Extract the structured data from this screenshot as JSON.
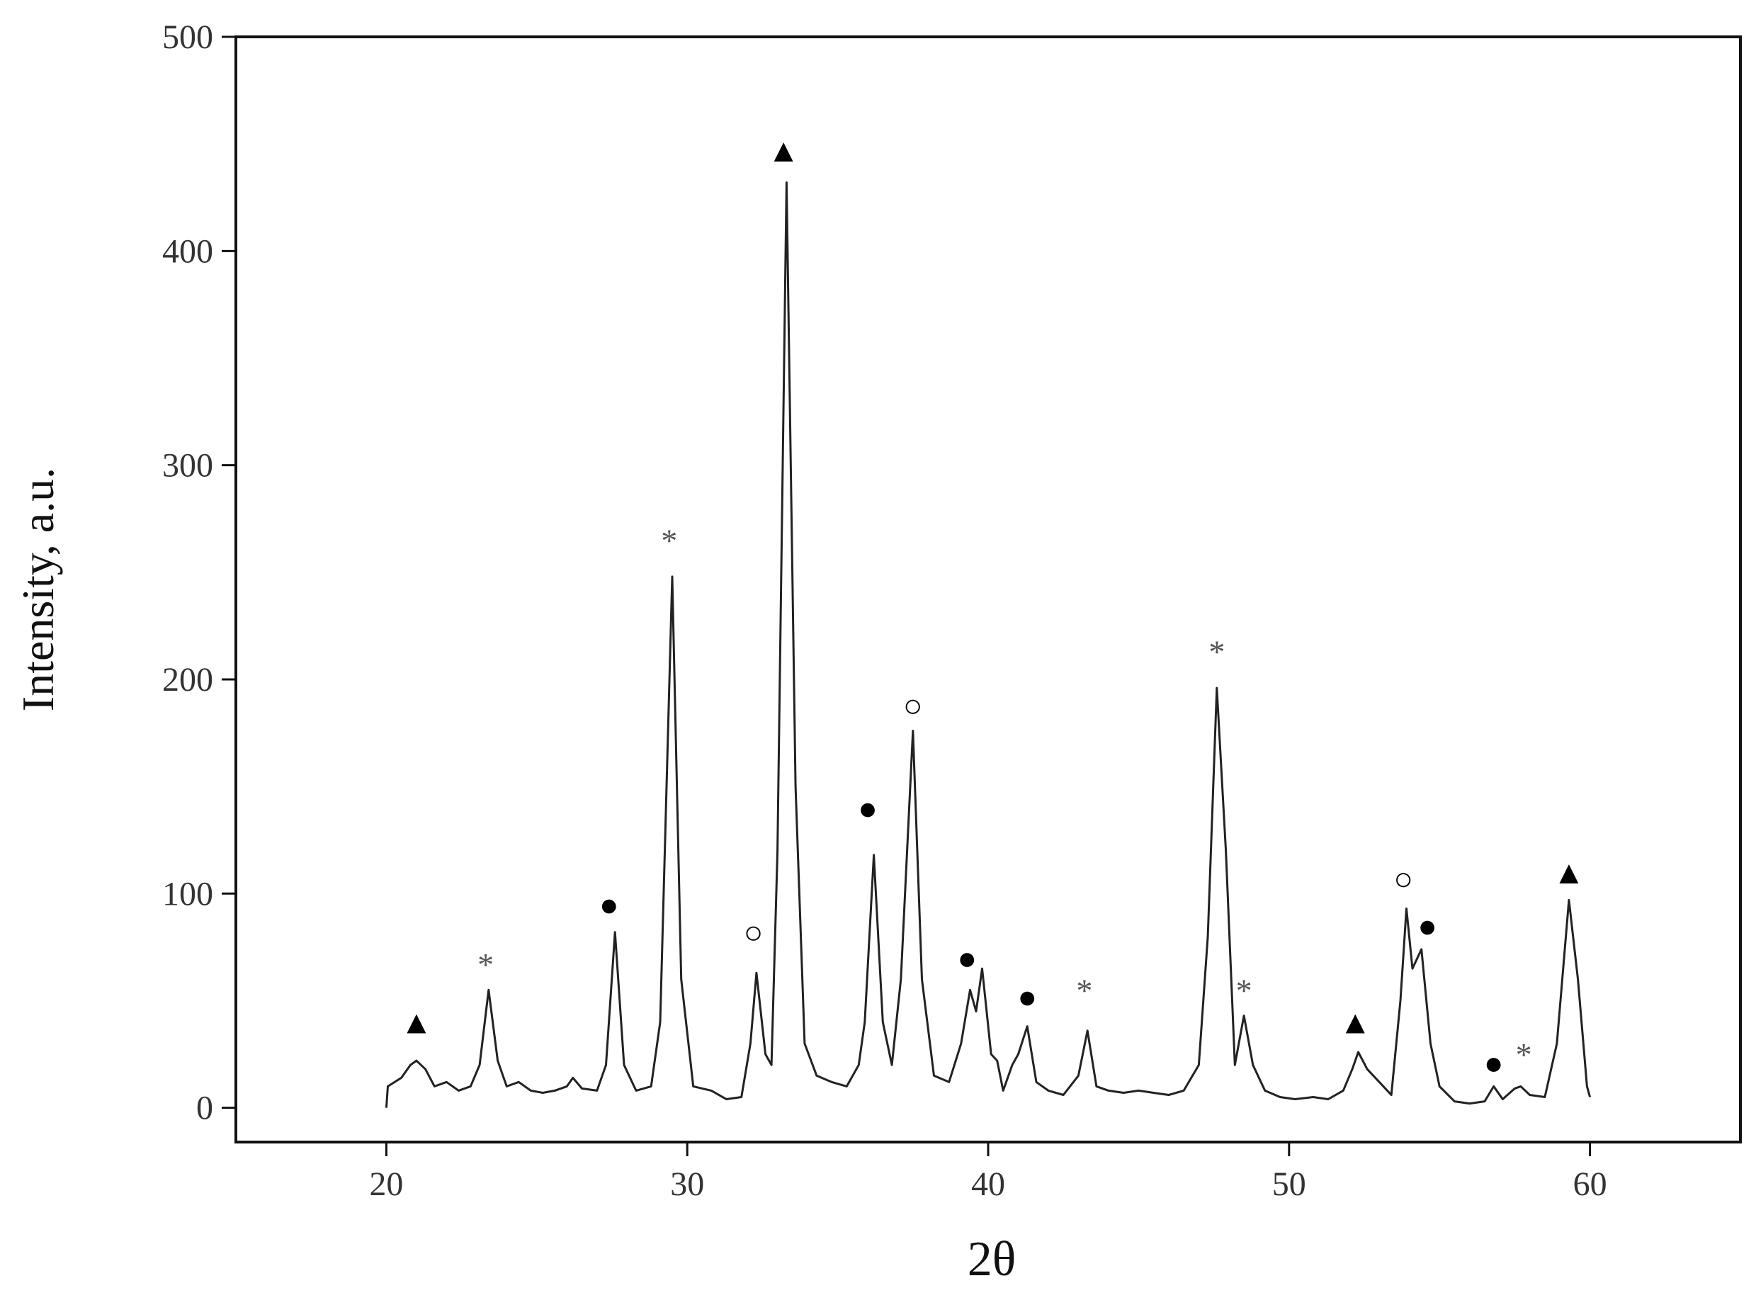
{
  "chart_data": {
    "type": "line",
    "x_label": "2θ",
    "y_label": "Intensity, a.u.",
    "xlim": [
      15,
      65
    ],
    "ylim": [
      -16,
      500
    ],
    "xticks": [
      20,
      30,
      40,
      50,
      60
    ],
    "yticks": [
      0,
      100,
      200,
      300,
      400,
      500
    ],
    "color": "#222222",
    "x": [
      20,
      20.05,
      20.5,
      20.8,
      21.0,
      21.3,
      21.6,
      22,
      22.4,
      22.8,
      23.1,
      23.4,
      23.7,
      24,
      24.4,
      24.8,
      25.2,
      25.6,
      26.0,
      26.2,
      26.5,
      27.0,
      27.3,
      27.6,
      27.9,
      28.3,
      28.8,
      29.1,
      29.5,
      29.8,
      30.2,
      30.8,
      31.3,
      31.8,
      32.1,
      32.3,
      32.6,
      32.8,
      33.0,
      33.3,
      33.6,
      33.9,
      34.3,
      34.8,
      35.3,
      35.7,
      35.9,
      36.2,
      36.5,
      36.8,
      37.1,
      37.5,
      37.8,
      38.2,
      38.7,
      39.1,
      39.4,
      39.6,
      39.8,
      40.1,
      40.3,
      40.5,
      40.8,
      41.0,
      41.3,
      41.6,
      42.0,
      42.5,
      43.0,
      43.3,
      43.6,
      44.0,
      44.5,
      45,
      45.5,
      46,
      46.5,
      47.0,
      47.3,
      47.6,
      47.9,
      48.2,
      48.5,
      48.8,
      49.2,
      49.7,
      50.2,
      50.8,
      51.3,
      51.8,
      52.1,
      52.3,
      52.6,
      53.0,
      53.4,
      53.7,
      53.9,
      54.1,
      54.4,
      54.7,
      55.0,
      55.5,
      56.0,
      56.5,
      56.8,
      57.1,
      57.5,
      57.7,
      58.0,
      58.5,
      58.9,
      59.3,
      59.6,
      59.9,
      60.0
    ],
    "values": [
      0,
      10,
      14,
      20,
      22,
      18,
      10,
      12,
      8,
      10,
      20,
      55,
      22,
      10,
      12,
      8,
      7,
      8,
      10,
      14,
      9,
      8,
      20,
      82,
      20,
      8,
      10,
      40,
      248,
      60,
      10,
      8,
      4,
      5,
      30,
      63,
      25,
      20,
      120,
      432,
      150,
      30,
      15,
      12,
      10,
      20,
      40,
      118,
      40,
      20,
      60,
      176,
      60,
      15,
      12,
      30,
      55,
      45,
      65,
      25,
      22,
      8,
      20,
      25,
      38,
      12,
      8,
      6,
      15,
      36,
      10,
      8,
      7,
      8,
      7,
      6,
      8,
      20,
      80,
      196,
      120,
      20,
      43,
      20,
      8,
      5,
      4,
      5,
      4,
      8,
      18,
      26,
      18,
      12,
      6,
      50,
      93,
      65,
      74,
      30,
      10,
      3,
      2,
      3,
      10,
      4,
      9,
      10,
      6,
      5,
      30,
      97,
      60,
      10,
      5
    ],
    "annotations": [
      {
        "text": "▲",
        "x": 21.0,
        "y": 40,
        "color": "#000000"
      },
      {
        "text": "*",
        "x": 23.3,
        "y": 67,
        "color": "#555555"
      },
      {
        "text": "●",
        "x": 27.4,
        "y": 95,
        "color": "#000000"
      },
      {
        "text": "*",
        "x": 29.4,
        "y": 265,
        "color": "#555555"
      },
      {
        "text": "○",
        "x": 32.2,
        "y": 82,
        "color": "#000000"
      },
      {
        "text": "▲",
        "x": 33.2,
        "y": 447,
        "color": "#000000"
      },
      {
        "text": "●",
        "x": 36.0,
        "y": 140,
        "color": "#000000"
      },
      {
        "text": "○",
        "x": 37.5,
        "y": 188,
        "color": "#000000"
      },
      {
        "text": "●",
        "x": 39.3,
        "y": 70,
        "color": "#000000"
      },
      {
        "text": "●",
        "x": 41.3,
        "y": 52,
        "color": "#000000"
      },
      {
        "text": "*",
        "x": 43.2,
        "y": 55,
        "color": "#555555"
      },
      {
        "text": "*",
        "x": 47.6,
        "y": 213,
        "color": "#555555"
      },
      {
        "text": "*",
        "x": 48.5,
        "y": 55,
        "color": "#555555"
      },
      {
        "text": "▲",
        "x": 52.2,
        "y": 40,
        "color": "#000000"
      },
      {
        "text": "○",
        "x": 53.8,
        "y": 107,
        "color": "#000000"
      },
      {
        "text": "●",
        "x": 54.6,
        "y": 85,
        "color": "#000000"
      },
      {
        "text": "●",
        "x": 56.8,
        "y": 21,
        "color": "#000000"
      },
      {
        "text": "*",
        "x": 57.8,
        "y": 25,
        "color": "#555555"
      },
      {
        "text": "▲",
        "x": 59.3,
        "y": 110,
        "color": "#000000"
      }
    ]
  }
}
